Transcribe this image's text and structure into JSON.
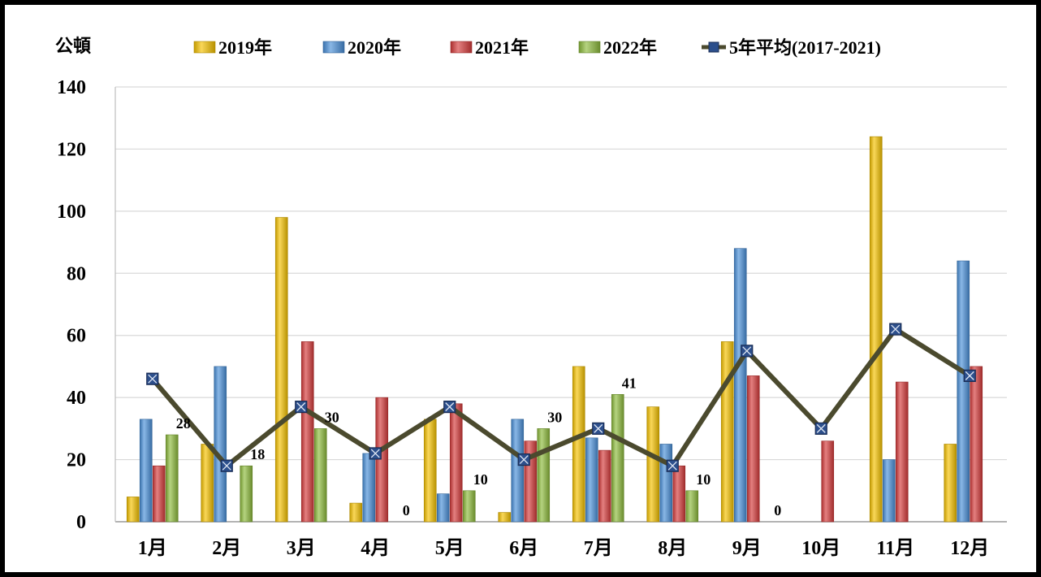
{
  "chart_data": {
    "type": "bar",
    "unit_label": "公頓",
    "categories": [
      "1月",
      "2月",
      "3月",
      "4月",
      "5月",
      "6月",
      "7月",
      "8月",
      "9月",
      "10月",
      "11月",
      "12月"
    ],
    "ylim": [
      0,
      140
    ],
    "yticks": [
      0,
      20,
      40,
      60,
      80,
      100,
      120,
      140
    ],
    "grid": true,
    "legend_position": "top",
    "series": [
      {
        "name": "2019年",
        "kind": "bar",
        "color": "#F5C200",
        "values": [
          8,
          25,
          98,
          6,
          33,
          3,
          50,
          37,
          58,
          0,
          124,
          25
        ]
      },
      {
        "name": "2020年",
        "kind": "bar",
        "color": "#4A90D9",
        "values": [
          33,
          50,
          0,
          22,
          9,
          33,
          27,
          25,
          88,
          0,
          20,
          84
        ]
      },
      {
        "name": "2021年",
        "kind": "bar",
        "color": "#D63B3B",
        "values": [
          18,
          0,
          58,
          40,
          38,
          26,
          23,
          18,
          47,
          26,
          45,
          50
        ]
      },
      {
        "name": "2022年",
        "kind": "bar",
        "color": "#8DBB3C",
        "values": [
          28,
          18,
          30,
          0,
          10,
          30,
          41,
          10,
          0,
          null,
          null,
          null
        ]
      },
      {
        "name": "5年平均(2017-2021)",
        "kind": "line",
        "color": "#4B4A2E",
        "marker_color": "#2C4F8C",
        "values": [
          46,
          18,
          37,
          22,
          37,
          20,
          30,
          18,
          55,
          30,
          62,
          47
        ]
      }
    ],
    "data_labels": [
      {
        "category_index": 0,
        "text": "28"
      },
      {
        "category_index": 1,
        "text": "18"
      },
      {
        "category_index": 2,
        "text": "30"
      },
      {
        "category_index": 3,
        "text": "0"
      },
      {
        "category_index": 4,
        "text": "10"
      },
      {
        "category_index": 5,
        "text": "30"
      },
      {
        "category_index": 6,
        "text": "41"
      },
      {
        "category_index": 7,
        "text": "10"
      },
      {
        "category_index": 8,
        "text": "0"
      }
    ]
  }
}
